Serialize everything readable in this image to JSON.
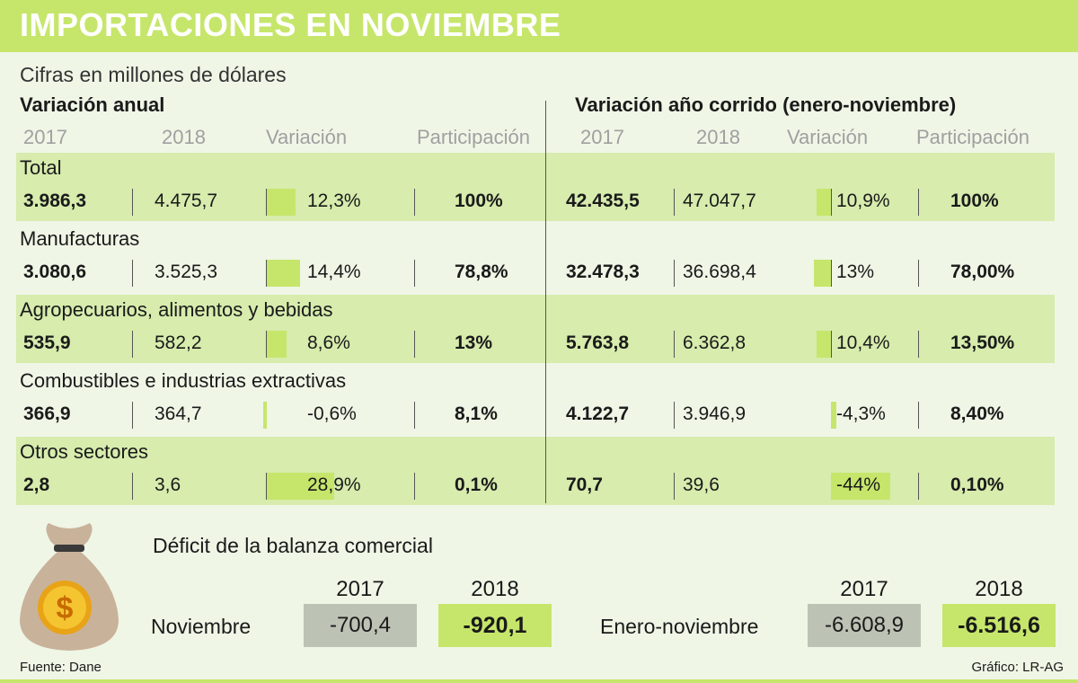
{
  "title": "IMPORTACIONES EN NOVIEMBRE",
  "subtitle": "Cifras en millones de dólares",
  "colors": {
    "accent": "#c6e66b",
    "band": "#d7ecad",
    "background": "#eff6e6",
    "grey_box": "#bcc2b4"
  },
  "annual": {
    "title": "Variación anual",
    "headers": [
      "2017",
      "2018",
      "Variación",
      "Participación"
    ]
  },
  "ytd": {
    "title": "Variación año corrido (enero-noviembre)",
    "headers": [
      "2017",
      "2018",
      "Variación",
      "Participación"
    ]
  },
  "chart_data": {
    "type": "table",
    "units": "millones de dólares",
    "rows": [
      {
        "category": "Total",
        "annual": {
          "y2017": "3.986,3",
          "y2018": "4.475,7",
          "variation": "12,3%",
          "variation_value": 12.3,
          "share": "100%"
        },
        "ytd": {
          "y2017": "42.435,5",
          "y2018": "47.047,7",
          "variation": "10,9%",
          "variation_value": 10.9,
          "share": "100%"
        }
      },
      {
        "category": "Manufacturas",
        "annual": {
          "y2017": "3.080,6",
          "y2018": "3.525,3",
          "variation": "14,4%",
          "variation_value": 14.4,
          "share": "78,8%"
        },
        "ytd": {
          "y2017": "32.478,3",
          "y2018": "36.698,4",
          "variation": "13%",
          "variation_value": 13,
          "share": "78,00%"
        }
      },
      {
        "category": "Agropecuarios, alimentos y bebidas",
        "annual": {
          "y2017": "535,9",
          "y2018": "582,2",
          "variation": "8,6%",
          "variation_value": 8.6,
          "share": "13%"
        },
        "ytd": {
          "y2017": "5.763,8",
          "y2018": "6.362,8",
          "variation": "10,4%",
          "variation_value": 10.4,
          "share": "13,50%"
        }
      },
      {
        "category": "Combustibles e industrias extractivas",
        "annual": {
          "y2017": "366,9",
          "y2018": "364,7",
          "variation": "-0,6%",
          "variation_value": -0.6,
          "share": "8,1%"
        },
        "ytd": {
          "y2017": "4.122,7",
          "y2018": "3.946,9",
          "variation": "-4,3%",
          "variation_value": -4.3,
          "share": "8,40%"
        }
      },
      {
        "category": "Otros sectores",
        "annual": {
          "y2017": "2,8",
          "y2018": "3,6",
          "variation": "28,9%",
          "variation_value": 28.9,
          "share": "0,1%"
        },
        "ytd": {
          "y2017": "70,7",
          "y2018": "39,6",
          "variation": "-44%",
          "variation_value": -44,
          "share": "0,10%"
        }
      }
    ]
  },
  "deficit": {
    "title": "Déficit de la balanza comercial",
    "november": {
      "label": "Noviembre",
      "y2017_label": "2017",
      "y2018_label": "2018",
      "v2017": "-700,4",
      "v2018": "-920,1"
    },
    "ytd": {
      "label": "Enero-noviembre",
      "y2017_label": "2017",
      "y2018_label": "2018",
      "v2017": "-6.608,9",
      "v2018": "-6.516,6"
    }
  },
  "bag_icon": {
    "name": "money-bag-icon",
    "symbol": "$"
  },
  "footer": {
    "source": "Fuente: Dane",
    "credit": "Gráfico: LR-AG"
  }
}
